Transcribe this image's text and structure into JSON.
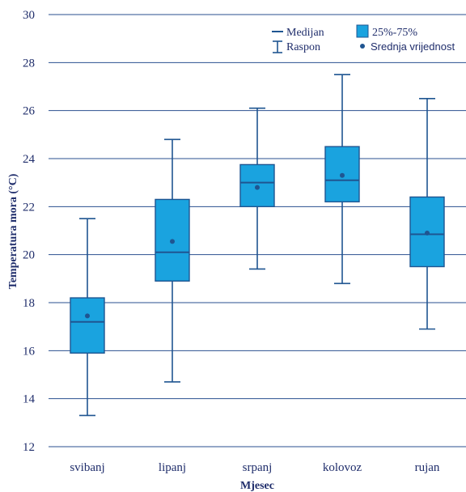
{
  "chart_data": {
    "type": "boxplot",
    "xlabel": "Mjesec",
    "ylabel": "Temperatura mora (°C)",
    "ylim": [
      12,
      30
    ],
    "yticks": [
      12,
      14,
      16,
      18,
      20,
      22,
      24,
      26,
      28,
      30
    ],
    "grid": true,
    "legend_position": "top-right",
    "categories": [
      "svibanj",
      "lipanj",
      "srpanj",
      "kolovoz",
      "rujan"
    ],
    "boxes": [
      {
        "min": 13.3,
        "q1": 15.9,
        "median": 17.2,
        "q3": 18.2,
        "max": 21.5,
        "mean": 17.45
      },
      {
        "min": 14.7,
        "q1": 18.9,
        "median": 20.1,
        "q3": 22.3,
        "max": 24.8,
        "mean": 20.55
      },
      {
        "min": 19.4,
        "q1": 22.0,
        "median": 23.0,
        "q3": 23.75,
        "max": 26.1,
        "mean": 22.8
      },
      {
        "min": 18.8,
        "q1": 22.2,
        "median": 23.1,
        "q3": 24.5,
        "max": 27.5,
        "mean": 23.3
      },
      {
        "min": 16.9,
        "q1": 19.5,
        "median": 20.85,
        "q3": 22.4,
        "max": 26.5,
        "mean": 20.9
      }
    ],
    "legend": {
      "median": "Medijan",
      "box": "25%-75%",
      "range": "Raspon",
      "mean": "Srednja vrijednost"
    },
    "colors": {
      "box_fill": "#1aa3df",
      "stroke": "#1f5591",
      "grid": "#2a4f8f",
      "text": "#1f2d6b"
    }
  }
}
